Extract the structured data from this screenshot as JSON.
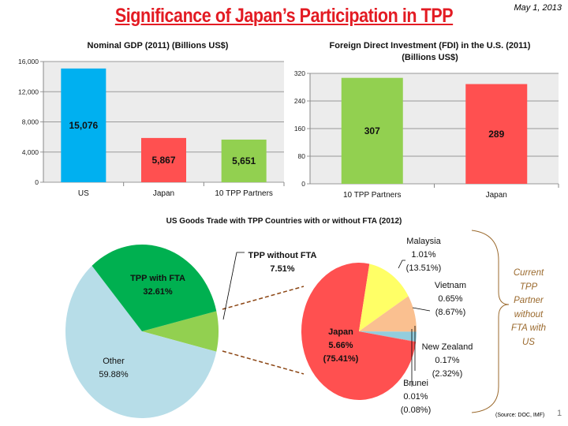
{
  "title": "Significance of Japan’s Participation in TPP",
  "date": "May 1, 2013",
  "source": "(Source: DOC, IMF)",
  "page_number": "1",
  "bracket_label": "Current TPP Partner without FTA with US",
  "chart_data": [
    {
      "type": "bar",
      "title": "Nominal GDP (2011) (Billions US$)",
      "categories": [
        "US",
        "Japan",
        "10 TPP Partners"
      ],
      "values": [
        15076,
        5867,
        5651
      ],
      "labels": [
        "15,076",
        "5,867",
        "5,651"
      ],
      "colors": [
        "#00b0f0",
        "#ff5050",
        "#92d050"
      ],
      "ylim": [
        0,
        16000
      ],
      "ticks": [
        "0",
        "4,000",
        "8,000",
        "12,000",
        "16,000"
      ],
      "tick_values": [
        0,
        4000,
        8000,
        12000,
        16000
      ],
      "grid": true
    },
    {
      "type": "bar",
      "title": "Foreign Direct Investment (FDI) in the U.S. (2011)",
      "subtitle": "(Billions US$)",
      "categories": [
        "10 TPP Partners",
        "Japan"
      ],
      "values": [
        307,
        289
      ],
      "labels": [
        "307",
        "289"
      ],
      "colors": [
        "#92d050",
        "#ff5050"
      ],
      "ylim": [
        0,
        320
      ],
      "ticks": [
        "0",
        "80",
        "160",
        "240",
        "320"
      ],
      "tick_values": [
        0,
        80,
        160,
        240,
        320
      ],
      "grid": true
    },
    {
      "type": "pie",
      "title": "US Goods Trade with TPP Countries with or without FTA (2012)",
      "slices": [
        {
          "name": "TPP without FTA",
          "value": 7.51,
          "label": "7.51%",
          "color": "#92d050"
        },
        {
          "name": "Other",
          "value": 59.88,
          "label": "59.88%",
          "color": "#b7dde8"
        },
        {
          "name": "TPP with FTA",
          "value": 32.61,
          "label": "32.61%",
          "color": "#00b050"
        }
      ]
    },
    {
      "type": "pie",
      "title": "",
      "slices": [
        {
          "name": "Japan",
          "value": 5.66,
          "share": 75.41,
          "label": "5.66%",
          "share_label": "(75.41%)",
          "color": "#ff5050"
        },
        {
          "name": "Malaysia",
          "value": 1.01,
          "share": 13.51,
          "label": "1.01%",
          "share_label": "(13.51%)",
          "color": "#ffff66"
        },
        {
          "name": "Vietnam",
          "value": 0.65,
          "share": 8.67,
          "label": "0.65%",
          "share_label": "(8.67%)",
          "color": "#fac090"
        },
        {
          "name": "New Zealand",
          "value": 0.17,
          "share": 2.32,
          "label": "0.17%",
          "share_label": "(2.32%)",
          "color": "#93cddd"
        },
        {
          "name": "Brunei",
          "value": 0.01,
          "share": 0.08,
          "label": "0.01%",
          "share_label": "(0.08%)",
          "color": "#ff5050"
        }
      ]
    }
  ]
}
